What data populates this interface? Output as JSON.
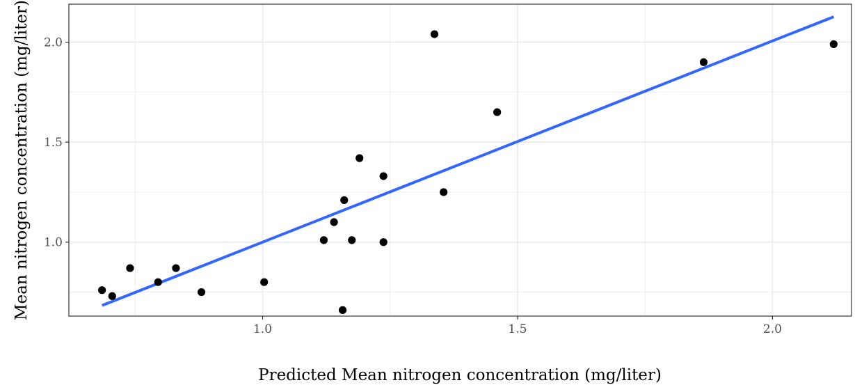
{
  "chart_data": {
    "type": "scatter",
    "title": "",
    "xlabel": "Predicted Mean nitrogen concentration (mg/liter)",
    "ylabel": "Mean nitrogen concentration (mg/liter)",
    "xlim": [
      0.62,
      2.155
    ],
    "ylim": [
      0.63,
      2.19
    ],
    "x_ticks": [
      1.0,
      1.5,
      2.0
    ],
    "x_tick_labels": [
      "1.0",
      "1.5",
      "2.0"
    ],
    "x_minor_ticks": [
      0.75,
      1.25,
      1.75
    ],
    "y_ticks": [
      1.0,
      1.5,
      2.0
    ],
    "y_tick_labels": [
      "1.0",
      "1.5",
      "2.0"
    ],
    "y_minor_ticks": [
      0.75,
      1.25,
      1.75
    ],
    "grid": true,
    "legend": "none",
    "points": [
      {
        "x": 0.685,
        "y": 0.76
      },
      {
        "x": 0.705,
        "y": 0.73
      },
      {
        "x": 0.74,
        "y": 0.87
      },
      {
        "x": 0.795,
        "y": 0.8
      },
      {
        "x": 0.83,
        "y": 0.87
      },
      {
        "x": 0.88,
        "y": 0.75
      },
      {
        "x": 1.003,
        "y": 0.8
      },
      {
        "x": 1.12,
        "y": 1.01
      },
      {
        "x": 1.14,
        "y": 1.1
      },
      {
        "x": 1.157,
        "y": 0.66
      },
      {
        "x": 1.16,
        "y": 1.21
      },
      {
        "x": 1.175,
        "y": 1.01
      },
      {
        "x": 1.19,
        "y": 1.42
      },
      {
        "x": 1.237,
        "y": 1.0
      },
      {
        "x": 1.237,
        "y": 1.33
      },
      {
        "x": 1.337,
        "y": 2.04
      },
      {
        "x": 1.355,
        "y": 1.25
      },
      {
        "x": 1.46,
        "y": 1.65
      },
      {
        "x": 1.865,
        "y": 1.9
      },
      {
        "x": 2.12,
        "y": 1.99
      }
    ],
    "fit_line": {
      "x": [
        0.685,
        2.12
      ],
      "y": [
        0.683,
        2.127
      ],
      "color": "#3366ff"
    },
    "point_color": "#000000",
    "grid_color": "#ebebeb",
    "panel_border_color": "#333333"
  }
}
